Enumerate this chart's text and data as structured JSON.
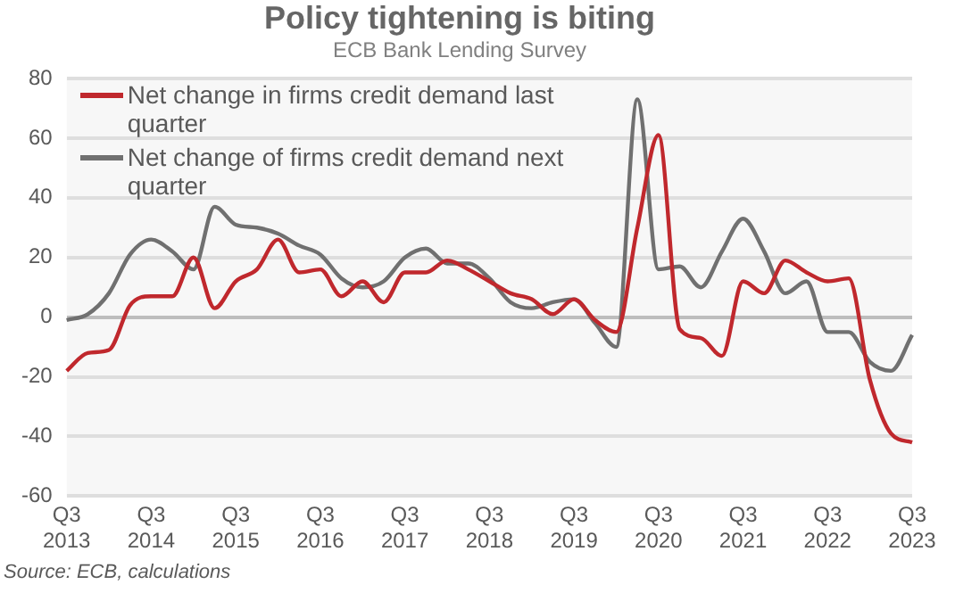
{
  "chart_data": {
    "type": "line",
    "title": "Policy tightening is biting",
    "subtitle": "ECB Bank Lending Survey",
    "categories": [
      "Q3 2013",
      null,
      null,
      null,
      "Q3 2014",
      null,
      null,
      null,
      "Q3 2015",
      null,
      null,
      null,
      "Q3 2016",
      null,
      null,
      null,
      "Q3 2017",
      null,
      null,
      null,
      "Q3 2018",
      null,
      null,
      null,
      "Q3 2019",
      null,
      null,
      null,
      "Q3 2020",
      null,
      null,
      null,
      "Q3 2021",
      null,
      null,
      null,
      "Q3 2022",
      null,
      null,
      null,
      "Q3 2023"
    ],
    "series": [
      {
        "name": "Net change in firms credit demand last quarter",
        "color": "#c0282d",
        "values": [
          -18,
          -12,
          -11,
          4,
          7,
          7,
          20,
          3,
          12,
          16,
          26,
          15,
          16,
          7,
          12,
          5,
          15,
          15,
          19,
          16,
          12,
          8,
          6,
          1,
          6,
          -1,
          -5,
          30,
          61,
          -4,
          -7,
          -13,
          12,
          8,
          19,
          15,
          12,
          13,
          -21,
          -39,
          -42
        ]
      },
      {
        "name": "Net change of firms credit demand next quarter",
        "color": "#707070",
        "values": [
          -1,
          1,
          8,
          21,
          26,
          22,
          16,
          37,
          31,
          30,
          28,
          24,
          21,
          13,
          10,
          12,
          20,
          23,
          18,
          18,
          13,
          5,
          3,
          5,
          6,
          -2,
          -10,
          73,
          16,
          17,
          10,
          22,
          33,
          22,
          8,
          12,
          -5,
          -5,
          -15,
          -18,
          -6
        ]
      }
    ],
    "ylim": [
      -60,
      80
    ],
    "yticks": [
      -60,
      -40,
      -20,
      0,
      20,
      40,
      60,
      80
    ],
    "grid": "y",
    "legend": "top left",
    "line_style": "solid",
    "marker": "none",
    "annotations": [
      "Source: ECB, calculations"
    ]
  }
}
